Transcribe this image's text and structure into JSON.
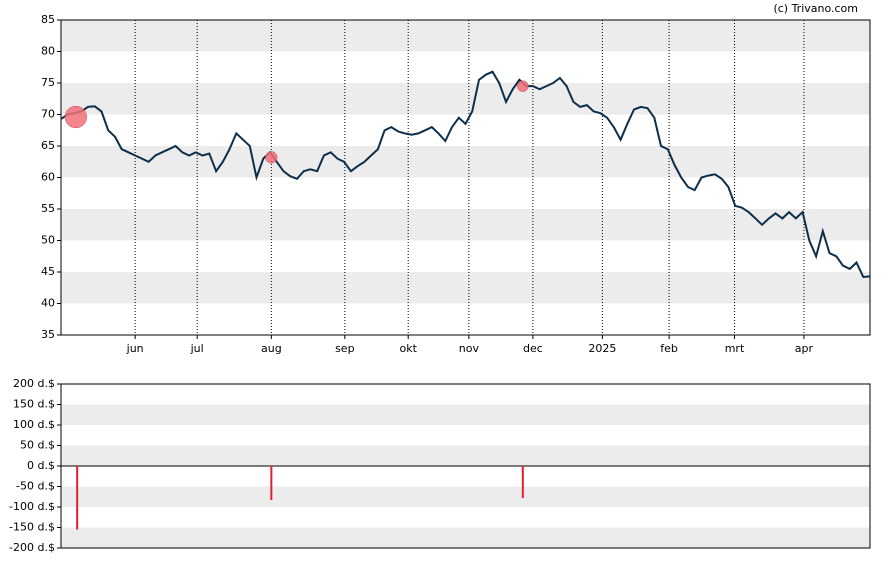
{
  "source": "(c) Trivano.com",
  "chart_data": [
    {
      "type": "line",
      "xlim": [
        0,
        120
      ],
      "xticks": [
        {
          "value": 11,
          "label": "jun"
        },
        {
          "value": 20.2,
          "label": "jul"
        },
        {
          "value": 31.2,
          "label": "aug"
        },
        {
          "value": 42.1,
          "label": "sep"
        },
        {
          "value": 51.5,
          "label": "okt"
        },
        {
          "value": 60.5,
          "label": "nov"
        },
        {
          "value": 70,
          "label": "dec"
        },
        {
          "value": 80.3,
          "label": "2025"
        },
        {
          "value": 90.2,
          "label": "feb"
        },
        {
          "value": 99.9,
          "label": "mrt"
        },
        {
          "value": 110.2,
          "label": "apr"
        }
      ],
      "ylim": [
        35,
        85
      ],
      "yticks": [
        35,
        40,
        45,
        50,
        55,
        60,
        65,
        70,
        75,
        80,
        85
      ],
      "color": "#0d2f4a",
      "values": [
        69.3,
        70,
        70.2,
        70.5,
        71.2,
        71.3,
        70.5,
        67.5,
        66.5,
        64.5,
        64,
        63.5,
        63,
        62.5,
        63.5,
        64,
        64.5,
        65,
        64,
        63.5,
        64,
        63.5,
        63.8,
        61,
        62.5,
        64.5,
        67,
        66,
        65,
        60,
        63,
        64,
        62.5,
        61,
        60.2,
        59.8,
        61,
        61.3,
        61,
        63.5,
        64,
        63,
        62.5,
        61,
        61.8,
        62.5,
        63.5,
        64.5,
        67.5,
        68,
        67.3,
        67,
        66.8,
        67,
        67.5,
        68,
        67,
        65.8,
        68,
        69.5,
        68.5,
        70.5,
        75.5,
        76.3,
        76.8,
        75,
        72,
        74,
        75.5,
        74.5,
        74.5,
        74,
        74.5,
        75,
        75.8,
        74.5,
        72,
        71.2,
        71.5,
        70.5,
        70.2,
        69.5,
        68,
        66,
        68.5,
        70.8,
        71.2,
        71,
        69.5,
        65,
        64.5,
        62,
        60,
        58.5,
        58,
        60,
        60.3,
        60.5,
        59.8,
        58.5,
        55.5,
        55.2,
        54.5,
        53.5,
        52.5,
        53.5,
        54.3,
        53.5,
        54.5,
        53.5,
        54.5,
        50,
        47.5,
        51.5,
        48,
        47.5,
        46,
        45.5,
        46.5,
        44.2,
        44.3
      ],
      "markers": {
        "x": [
          2.2,
          31.2,
          68.5
        ],
        "values": [
          69.6,
          63.2,
          74.5
        ],
        "color": "#f0707a"
      }
    },
    {
      "type": "bar",
      "xlim": [
        0,
        120
      ],
      "ylim": [
        -200,
        200
      ],
      "yticks": [
        {
          "value": -200,
          "label": "-200 d.$"
        },
        {
          "value": -150,
          "label": "-150 d.$"
        },
        {
          "value": -100,
          "label": "-100 d.$"
        },
        {
          "value": -50,
          "label": "-50 d.$"
        },
        {
          "value": 0,
          "label": "0 d.$"
        },
        {
          "value": 50,
          "label": "50 d.$"
        },
        {
          "value": 100,
          "label": "100 d.$"
        },
        {
          "value": 150,
          "label": "150 d.$"
        },
        {
          "value": 200,
          "label": "200 d.$"
        }
      ],
      "color": "#e0202e",
      "x": [
        2.4,
        31.2,
        68.5
      ],
      "values": [
        -155,
        -83,
        -78
      ]
    }
  ]
}
